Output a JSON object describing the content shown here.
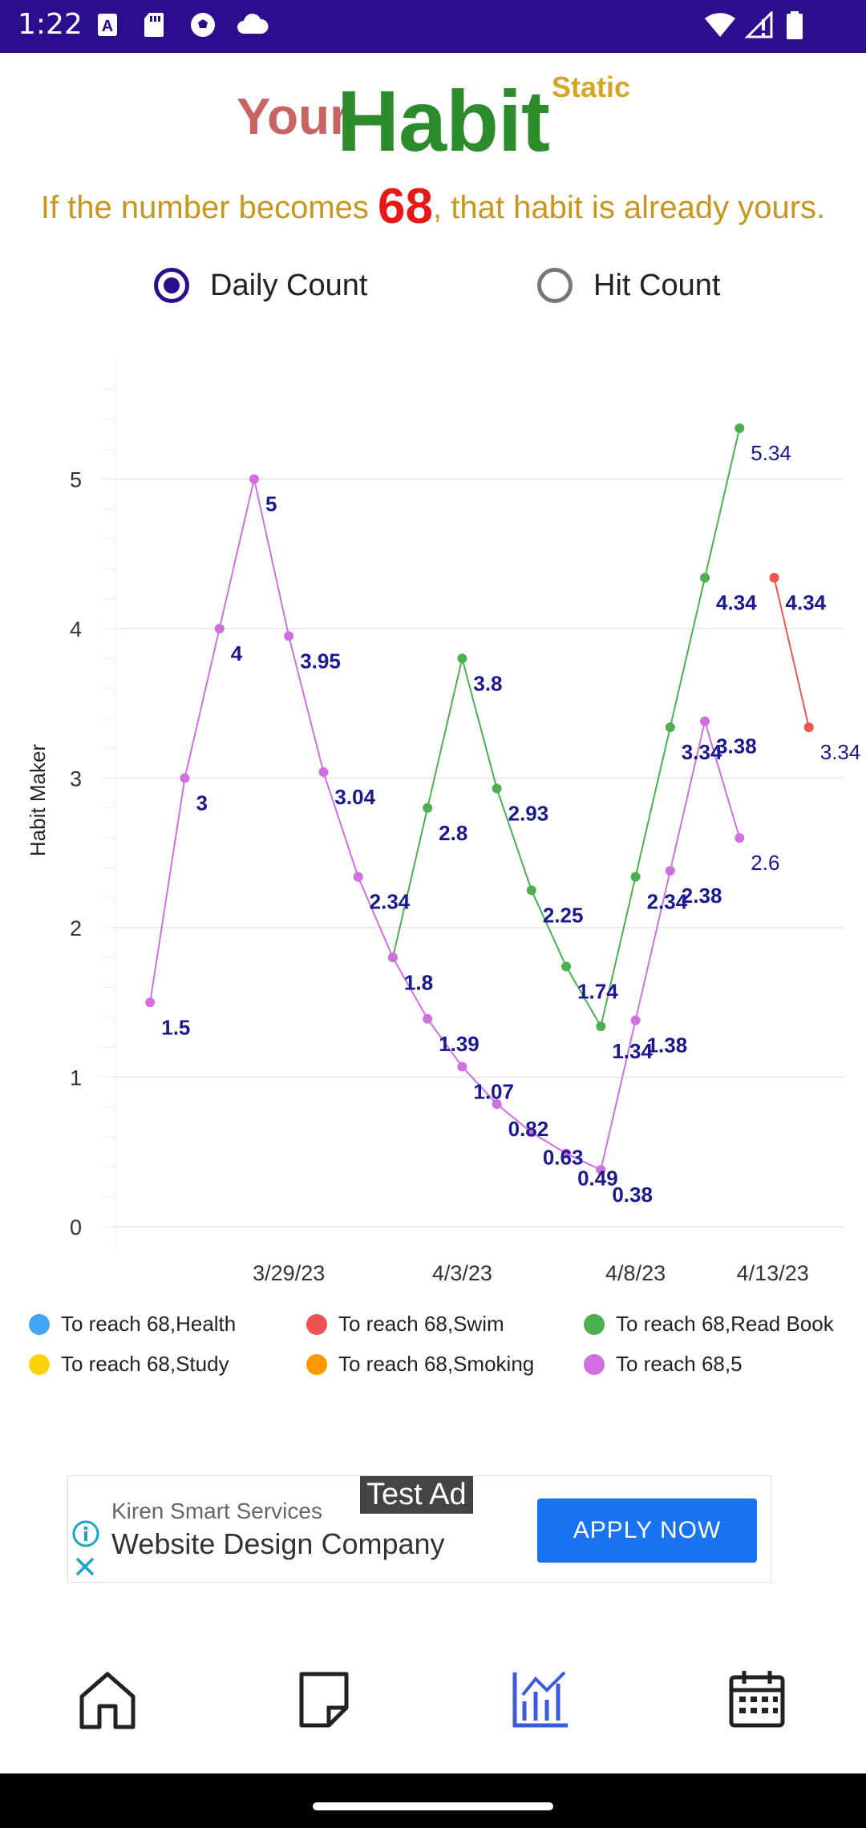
{
  "status_bar": {
    "time": "1:22"
  },
  "header": {
    "title_your": "Your",
    "title_habit": "Habit",
    "title_static": "Static",
    "subtitle_before": "If the number becomes ",
    "subtitle_number": "68",
    "subtitle_after": ", that habit is already yours."
  },
  "mode_options": [
    {
      "label": "Daily Count",
      "selected": true
    },
    {
      "label": "Hit Count",
      "selected": false
    }
  ],
  "chart_data": {
    "type": "line",
    "ylabel": "Habit Maker",
    "xlabel": "",
    "ylim": [
      0,
      5.5
    ],
    "yticks": [
      0,
      1,
      2,
      3,
      4,
      5
    ],
    "xlim": [
      "3/24/23",
      "4/14/23"
    ],
    "xticks": [
      "3/29/23",
      "4/3/23",
      "4/8/23",
      "4/13/23"
    ],
    "grid": true,
    "legend_position": "bottom",
    "legend": [
      {
        "name": "To reach 68,Health",
        "color": "#42a5f5"
      },
      {
        "name": "To reach 68,Swim",
        "color": "#ef5350"
      },
      {
        "name": "To reach 68,Read Book",
        "color": "#4caf50"
      },
      {
        "name": "To reach 68,Study",
        "color": "#fdd20a"
      },
      {
        "name": "To reach 68,Smoking",
        "color": "#ff9800"
      },
      {
        "name": "To reach 68,5",
        "color": "#d070e0"
      }
    ],
    "series": [
      {
        "name": "To reach 68,Swim",
        "color": "#ef5350",
        "label_color": "#1a1a8c",
        "points": [
          {
            "x": "4/12/23",
            "y": 4.34
          },
          {
            "x": "4/13/23",
            "y": 3.34
          }
        ]
      },
      {
        "name": "To reach 68,Read Book",
        "color": "#4caf50",
        "label_color": "#1a1a8c",
        "points": [
          {
            "x": "4/1/23",
            "y": 1.8
          },
          {
            "x": "4/2/23",
            "y": 2.8
          },
          {
            "x": "4/3/23",
            "y": 3.8
          },
          {
            "x": "4/4/23",
            "y": 2.93
          },
          {
            "x": "4/5/23",
            "y": 2.25
          },
          {
            "x": "4/6/23",
            "y": 1.74
          },
          {
            "x": "4/7/23",
            "y": 1.34
          },
          {
            "x": "4/8/23",
            "y": 2.34
          },
          {
            "x": "4/9/23",
            "y": 3.34
          },
          {
            "x": "4/10/23",
            "y": 4.34
          },
          {
            "x": "4/11/23",
            "y": 5.34
          }
        ]
      },
      {
        "name": "To reach 68,5",
        "color": "#d070e0",
        "label_color": "#1a1a8c",
        "points": [
          {
            "x": "3/25/23",
            "y": 1.5
          },
          {
            "x": "3/26/23",
            "y": 3
          },
          {
            "x": "3/27/23",
            "y": 4
          },
          {
            "x": "3/28/23",
            "y": 5
          },
          {
            "x": "3/29/23",
            "y": 3.95
          },
          {
            "x": "3/30/23",
            "y": 3.04
          },
          {
            "x": "3/31/23",
            "y": 2.34
          },
          {
            "x": "4/1/23",
            "y": 1.8
          },
          {
            "x": "4/2/23",
            "y": 1.39
          },
          {
            "x": "4/3/23",
            "y": 1.07
          },
          {
            "x": "4/4/23",
            "y": 0.82
          },
          {
            "x": "4/5/23",
            "y": 0.63
          },
          {
            "x": "4/6/23",
            "y": 0.49
          },
          {
            "x": "4/7/23",
            "y": 0.38
          },
          {
            "x": "4/8/23",
            "y": 1.38
          },
          {
            "x": "4/9/23",
            "y": 2.38
          },
          {
            "x": "4/10/23",
            "y": 3.38
          },
          {
            "x": "4/11/23",
            "y": 2.6
          }
        ]
      }
    ]
  },
  "ad": {
    "badge": "Test Ad",
    "company": "Kiren Smart Services",
    "headline": "Website Design Company",
    "cta": "APPLY NOW"
  },
  "bottom_nav": [
    {
      "icon": "home-icon",
      "active": false
    },
    {
      "icon": "note-icon",
      "active": false
    },
    {
      "icon": "chart-icon",
      "active": true
    },
    {
      "icon": "calendar-icon",
      "active": false
    }
  ]
}
